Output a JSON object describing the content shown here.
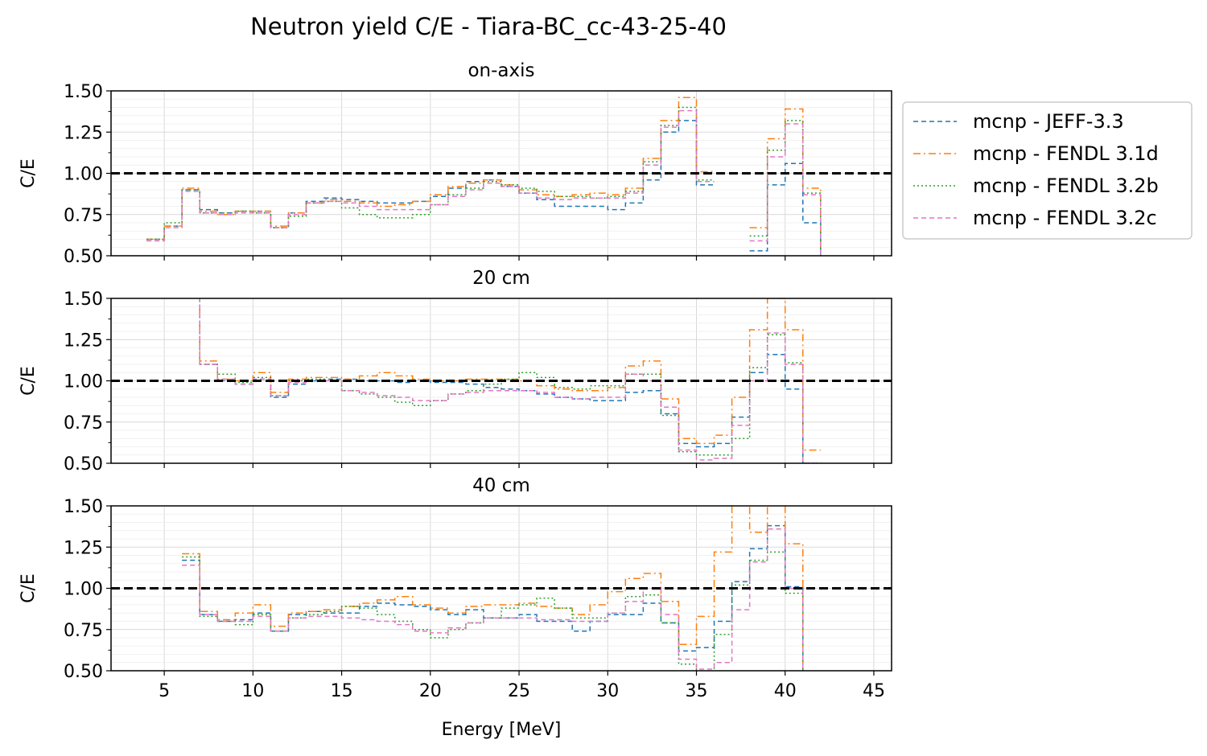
{
  "figure_title": "Neutron yield C/E - Tiara-BC_cc-43-25-40",
  "xlabel": "Energy [MeV]",
  "ylabel": "C/E",
  "legend": [
    {
      "label": "mcnp - JEFF-3.3",
      "color": "#1f77b4",
      "dash": "dashed"
    },
    {
      "label": "mcnp - FENDL 3.1d",
      "color": "#ff7f0e",
      "dash": "dashdot"
    },
    {
      "label": "mcnp - FENDL 3.2b",
      "color": "#2ca02c",
      "dash": "dotted"
    },
    {
      "label": "mcnp - FENDL 3.2c",
      "color": "#e377c2",
      "dash": "dashed"
    }
  ],
  "chart_data": [
    {
      "type": "line",
      "style": "step",
      "title": "on-axis",
      "xlim": [
        2,
        46
      ],
      "ylim": [
        0.5,
        1.5
      ],
      "xticks": [
        5,
        10,
        15,
        20,
        25,
        30,
        35,
        40,
        45
      ],
      "yticks": [
        "0.50",
        "0.75",
        "1.00",
        "1.25",
        "1.50"
      ],
      "reference_line": 1.0,
      "grid": true,
      "bin_edges": [
        4,
        5,
        6,
        7,
        8,
        9,
        10,
        11,
        12,
        13,
        14,
        15,
        16,
        17,
        18,
        19,
        20,
        21,
        22,
        23,
        24,
        25,
        26,
        27,
        28,
        29,
        30,
        31,
        32,
        33,
        34,
        35,
        36,
        37,
        38,
        39,
        40,
        41,
        42
      ],
      "series": [
        {
          "name": "mcnp - JEFF-3.3",
          "values": [
            0.6,
            0.68,
            0.9,
            0.78,
            0.76,
            0.77,
            0.77,
            0.67,
            0.76,
            0.83,
            0.85,
            0.84,
            0.83,
            0.82,
            0.82,
            0.83,
            0.86,
            0.91,
            0.95,
            0.96,
            0.92,
            0.88,
            0.84,
            0.8,
            0.8,
            0.8,
            0.78,
            0.82,
            0.96,
            1.25,
            1.32,
            0.93,
            null,
            null,
            0.53,
            0.93,
            1.06,
            0.7,
            0.48
          ]
        },
        {
          "name": "mcnp - FENDL 3.1d",
          "values": [
            0.6,
            0.68,
            0.91,
            0.77,
            0.75,
            0.77,
            0.77,
            0.68,
            0.76,
            0.82,
            0.84,
            0.83,
            0.82,
            0.8,
            0.81,
            0.83,
            0.87,
            0.92,
            0.94,
            0.96,
            0.93,
            0.9,
            0.87,
            0.86,
            0.87,
            0.88,
            0.87,
            0.91,
            1.09,
            1.32,
            1.46,
            1.01,
            null,
            null,
            0.67,
            1.21,
            1.39,
            0.91,
            0.48
          ]
        },
        {
          "name": "mcnp - FENDL 3.2b",
          "values": [
            0.6,
            0.7,
            0.9,
            0.76,
            0.76,
            0.77,
            0.76,
            0.67,
            0.74,
            0.82,
            0.83,
            0.79,
            0.75,
            0.73,
            0.73,
            0.75,
            0.81,
            0.87,
            0.91,
            0.95,
            0.93,
            0.91,
            0.89,
            0.86,
            0.86,
            0.85,
            0.86,
            0.89,
            1.07,
            1.29,
            1.4,
            0.96,
            null,
            null,
            0.62,
            1.14,
            1.32,
            0.88,
            0.48
          ]
        },
        {
          "name": "mcnp - FENDL 3.2c",
          "values": [
            0.59,
            0.67,
            0.89,
            0.76,
            0.75,
            0.76,
            0.76,
            0.67,
            0.75,
            0.82,
            0.83,
            0.82,
            0.8,
            0.78,
            0.78,
            0.78,
            0.81,
            0.86,
            0.9,
            0.94,
            0.92,
            0.88,
            0.85,
            0.84,
            0.85,
            0.85,
            0.85,
            0.88,
            1.05,
            1.28,
            1.38,
            0.95,
            null,
            null,
            0.59,
            1.1,
            1.3,
            0.87,
            0.48
          ]
        }
      ]
    },
    {
      "type": "line",
      "style": "step",
      "title": "20 cm",
      "xlim": [
        2,
        46
      ],
      "ylim": [
        0.5,
        1.5
      ],
      "xticks": [
        5,
        10,
        15,
        20,
        25,
        30,
        35,
        40,
        45
      ],
      "yticks": [
        "0.50",
        "0.75",
        "1.00",
        "1.25",
        "1.50"
      ],
      "reference_line": 1.0,
      "grid": true,
      "bin_edges": [
        6,
        7,
        8,
        9,
        10,
        11,
        12,
        13,
        14,
        15,
        16,
        17,
        18,
        19,
        20,
        21,
        22,
        23,
        24,
        25,
        26,
        27,
        28,
        29,
        30,
        31,
        32,
        33,
        34,
        35,
        36,
        37,
        38,
        39,
        40,
        41,
        42
      ],
      "series": [
        {
          "name": "mcnp - JEFF-3.3",
          "values": [
            1.6,
            1.1,
            1.0,
            0.98,
            1.01,
            0.9,
            0.98,
            1.0,
            1.01,
            1.01,
            1.0,
            1.0,
            0.99,
            1.0,
            0.99,
            0.99,
            0.98,
            0.96,
            0.95,
            0.94,
            0.92,
            0.9,
            0.89,
            0.88,
            0.88,
            0.93,
            0.94,
            0.8,
            0.62,
            0.6,
            0.62,
            0.78,
            1.05,
            1.16,
            0.95,
            0.48
          ]
        },
        {
          "name": "mcnp - FENDL 3.1d",
          "values": [
            1.6,
            1.12,
            1.01,
            1.0,
            1.05,
            0.93,
            1.01,
            1.02,
            1.02,
            1.01,
            1.03,
            1.05,
            1.03,
            1.01,
            1.0,
            1.0,
            1.01,
            1.01,
            1.01,
            1.0,
            0.97,
            0.95,
            0.94,
            0.94,
            0.96,
            1.09,
            1.12,
            0.89,
            0.65,
            0.62,
            0.67,
            0.9,
            1.31,
            1.5,
            1.31,
            0.58
          ]
        },
        {
          "name": "mcnp - FENDL 3.2b",
          "values": [
            1.6,
            1.1,
            1.04,
            0.99,
            1.02,
            0.91,
            1.0,
            1.01,
            1.0,
            0.94,
            0.92,
            0.9,
            0.87,
            0.85,
            0.88,
            0.92,
            0.94,
            0.98,
            1.01,
            1.05,
            1.02,
            0.96,
            0.95,
            0.97,
            0.97,
            1.04,
            1.04,
            0.79,
            0.57,
            0.55,
            0.55,
            0.65,
            1.08,
            1.28,
            1.11,
            0.5
          ]
        },
        {
          "name": "mcnp - FENDL 3.2c",
          "values": [
            1.6,
            1.1,
            1.01,
            0.98,
            1.01,
            0.91,
            0.99,
            1.0,
            1.0,
            0.94,
            0.93,
            0.91,
            0.9,
            0.88,
            0.88,
            0.92,
            0.93,
            0.94,
            0.94,
            0.94,
            0.93,
            0.9,
            0.89,
            0.9,
            0.9,
            1.04,
            1.0,
            0.84,
            0.58,
            0.52,
            0.53,
            0.73,
            1.0,
            1.29,
            1.1,
            0.5
          ]
        }
      ]
    },
    {
      "type": "line",
      "style": "step",
      "title": "40 cm",
      "xlim": [
        2,
        46
      ],
      "ylim": [
        0.5,
        1.5
      ],
      "xticks": [
        5,
        10,
        15,
        20,
        25,
        30,
        35,
        40,
        45
      ],
      "yticks": [
        "0.50",
        "0.75",
        "1.00",
        "1.25",
        "1.50"
      ],
      "reference_line": 1.0,
      "grid": true,
      "bin_edges": [
        6,
        7,
        8,
        9,
        10,
        11,
        12,
        13,
        14,
        15,
        16,
        17,
        18,
        19,
        20,
        21,
        22,
        23,
        24,
        25,
        26,
        27,
        28,
        29,
        30,
        31,
        32,
        33,
        34,
        35,
        36,
        37,
        38,
        39,
        40,
        41
      ],
      "series": [
        {
          "name": "mcnp - JEFF-3.3",
          "values": [
            1.17,
            0.84,
            0.8,
            0.81,
            0.85,
            0.74,
            0.84,
            0.86,
            0.85,
            0.85,
            0.89,
            0.91,
            0.9,
            0.89,
            0.87,
            0.84,
            0.87,
            0.82,
            0.82,
            0.84,
            0.8,
            0.8,
            0.74,
            0.8,
            0.84,
            0.84,
            0.91,
            0.79,
            0.62,
            0.64,
            0.8,
            1.04,
            1.24,
            1.38,
            1.01,
            0.48
          ]
        },
        {
          "name": "mcnp - FENDL 3.1d",
          "values": [
            1.21,
            0.86,
            0.81,
            0.85,
            0.9,
            0.77,
            0.85,
            0.86,
            0.87,
            0.89,
            0.91,
            0.93,
            0.95,
            0.9,
            0.88,
            0.85,
            0.89,
            0.9,
            0.9,
            0.91,
            0.89,
            0.88,
            0.84,
            0.9,
            0.98,
            1.06,
            1.09,
            0.92,
            0.66,
            0.83,
            1.22,
            1.56,
            1.34,
            1.56,
            1.27,
            0.54
          ]
        },
        {
          "name": "mcnp - FENDL 3.2b",
          "values": [
            1.19,
            0.83,
            0.8,
            0.78,
            0.84,
            0.74,
            0.82,
            0.84,
            0.86,
            0.89,
            0.88,
            0.84,
            0.8,
            0.75,
            0.7,
            0.75,
            0.79,
            0.82,
            0.88,
            0.9,
            0.94,
            0.88,
            0.82,
            0.82,
            0.85,
            0.95,
            0.96,
            0.79,
            0.54,
            0.48,
            0.72,
            1.02,
            1.17,
            1.22,
            0.97,
            0.48
          ]
        },
        {
          "name": "mcnp - FENDL 3.2c",
          "values": [
            1.14,
            0.84,
            0.8,
            0.8,
            0.83,
            0.74,
            0.82,
            0.83,
            0.83,
            0.82,
            0.81,
            0.8,
            0.78,
            0.74,
            0.73,
            0.76,
            0.79,
            0.82,
            0.82,
            0.82,
            0.81,
            0.81,
            0.8,
            0.8,
            0.85,
            0.92,
            1.0,
            0.84,
            0.57,
            0.51,
            0.55,
            0.87,
            1.16,
            1.36,
            1.0,
            0.48
          ]
        }
      ]
    }
  ]
}
